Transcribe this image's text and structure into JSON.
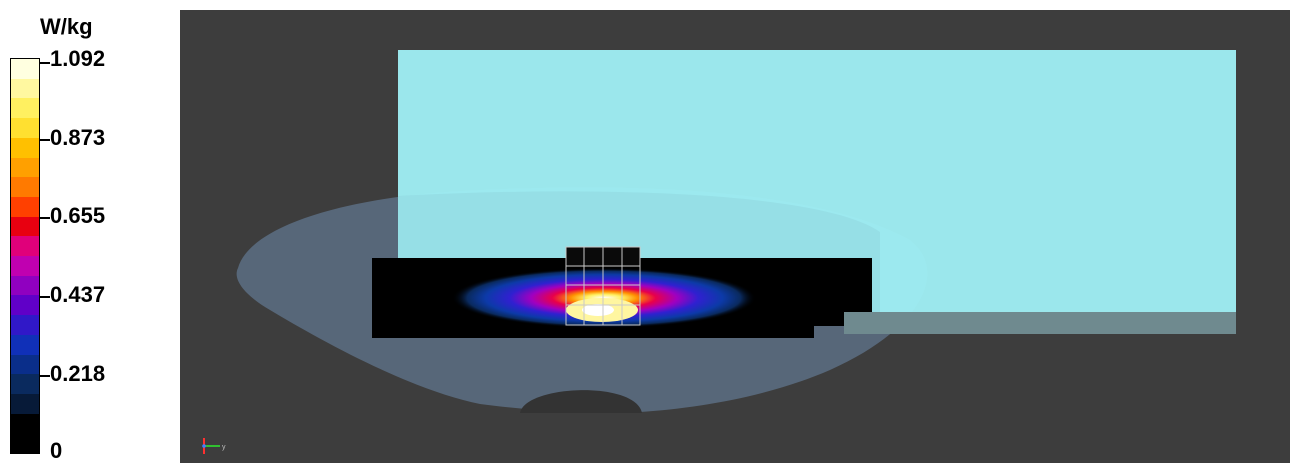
{
  "legend": {
    "unit": "W/kg",
    "ticks": [
      "1.092",
      "0.873",
      "0.655",
      "0.437",
      "0.218",
      "0"
    ],
    "colors": [
      "#ffffe0",
      "#fff8a0",
      "#fff060",
      "#ffe030",
      "#ffc000",
      "#ffa000",
      "#ff7a00",
      "#ff4000",
      "#e80010",
      "#e0007a",
      "#c000b0",
      "#9000c0",
      "#6000c8",
      "#3018c8",
      "#1030b8",
      "#0a2e8a",
      "#0a2a5e",
      "#071a38",
      "#000000",
      "#000000"
    ]
  },
  "viewport": {
    "background": "#3d3d3d",
    "phantom_color": "#a0f0f5",
    "head_color": "#5c6e84",
    "axis_icons": [
      "axis-triad-icon"
    ]
  }
}
